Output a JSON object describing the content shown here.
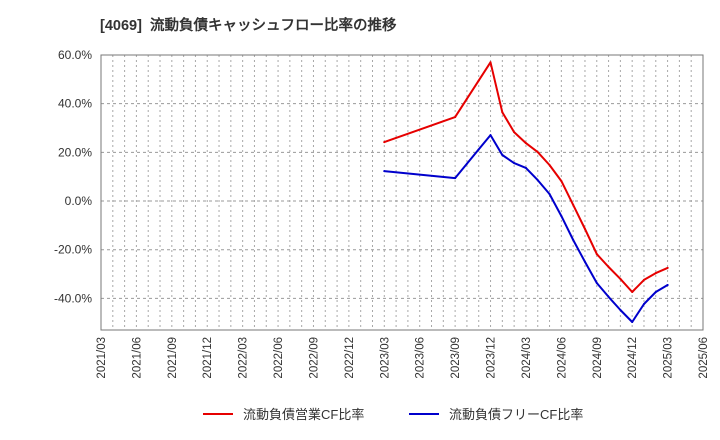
{
  "chart_data": {
    "type": "line",
    "title": "[4069]  流動負債キャッシュフロー比率の推移",
    "xlabel": "",
    "ylabel": "",
    "x_tick_labels": [
      "2021/03",
      "2021/06",
      "2021/09",
      "2021/12",
      "2022/03",
      "2022/06",
      "2022/09",
      "2022/12",
      "2023/03",
      "2023/06",
      "2023/09",
      "2023/12",
      "2024/03",
      "2024/06",
      "2024/09",
      "2024/12",
      "2025/03",
      "2025/06"
    ],
    "x_range": {
      "start": {
        "year": 2021,
        "month": 3
      },
      "end": {
        "year": 2025,
        "month": 6
      }
    },
    "x_tick_interval_months": 3,
    "x_grid_interval_months": 1,
    "y_ticks": [
      60,
      40,
      20,
      0,
      -20,
      -40
    ],
    "y_tick_labels": [
      "60.0%",
      "40.0%",
      "20.0%",
      "0.0%",
      "-20.0%",
      "-40.0%"
    ],
    "ylim": [
      -53,
      60
    ],
    "grid": true,
    "legend_position": "bottom",
    "series": [
      {
        "name": "流動負債営業CF比率",
        "color": "#e60000",
        "points": [
          {
            "year": 2023,
            "month": 3,
            "value": 24.2
          },
          {
            "year": 2023,
            "month": 9,
            "value": 34.5
          },
          {
            "year": 2023,
            "month": 10,
            "value": 42.0
          },
          {
            "year": 2023,
            "month": 11,
            "value": 49.5
          },
          {
            "year": 2023,
            "month": 12,
            "value": 57.0
          },
          {
            "year": 2024,
            "month": 1,
            "value": 36.5
          },
          {
            "year": 2024,
            "month": 2,
            "value": 28.3
          },
          {
            "year": 2024,
            "month": 3,
            "value": 23.8
          },
          {
            "year": 2024,
            "month": 4,
            "value": 20.1
          },
          {
            "year": 2024,
            "month": 5,
            "value": 14.8
          },
          {
            "year": 2024,
            "month": 6,
            "value": 8.2
          },
          {
            "year": 2024,
            "month": 7,
            "value": -1.6
          },
          {
            "year": 2024,
            "month": 8,
            "value": -11.5
          },
          {
            "year": 2024,
            "month": 9,
            "value": -21.8
          },
          {
            "year": 2024,
            "month": 10,
            "value": -27.1
          },
          {
            "year": 2024,
            "month": 11,
            "value": -32.0
          },
          {
            "year": 2024,
            "month": 12,
            "value": -37.4
          },
          {
            "year": 2025,
            "month": 1,
            "value": -32.4
          },
          {
            "year": 2025,
            "month": 2,
            "value": -29.6
          },
          {
            "year": 2025,
            "month": 3,
            "value": -27.5
          }
        ]
      },
      {
        "name": "流動負債フリーCF比率",
        "color": "#0000cc",
        "points": [
          {
            "year": 2023,
            "month": 3,
            "value": 12.3
          },
          {
            "year": 2023,
            "month": 9,
            "value": 9.4
          },
          {
            "year": 2023,
            "month": 10,
            "value": 15.3
          },
          {
            "year": 2023,
            "month": 11,
            "value": 21.2
          },
          {
            "year": 2023,
            "month": 12,
            "value": 27.1
          },
          {
            "year": 2024,
            "month": 1,
            "value": 18.9
          },
          {
            "year": 2024,
            "month": 2,
            "value": 15.6
          },
          {
            "year": 2024,
            "month": 3,
            "value": 13.6
          },
          {
            "year": 2024,
            "month": 4,
            "value": 8.6
          },
          {
            "year": 2024,
            "month": 5,
            "value": 2.9
          },
          {
            "year": 2024,
            "month": 6,
            "value": -6.2
          },
          {
            "year": 2024,
            "month": 7,
            "value": -16.0
          },
          {
            "year": 2024,
            "month": 8,
            "value": -25.0
          },
          {
            "year": 2024,
            "month": 9,
            "value": -33.7
          },
          {
            "year": 2024,
            "month": 10,
            "value": -39.4
          },
          {
            "year": 2024,
            "month": 11,
            "value": -44.8
          },
          {
            "year": 2024,
            "month": 12,
            "value": -49.7
          },
          {
            "year": 2025,
            "month": 1,
            "value": -42.3
          },
          {
            "year": 2025,
            "month": 2,
            "value": -37.4
          },
          {
            "year": 2025,
            "month": 3,
            "value": -34.5
          }
        ]
      }
    ]
  }
}
